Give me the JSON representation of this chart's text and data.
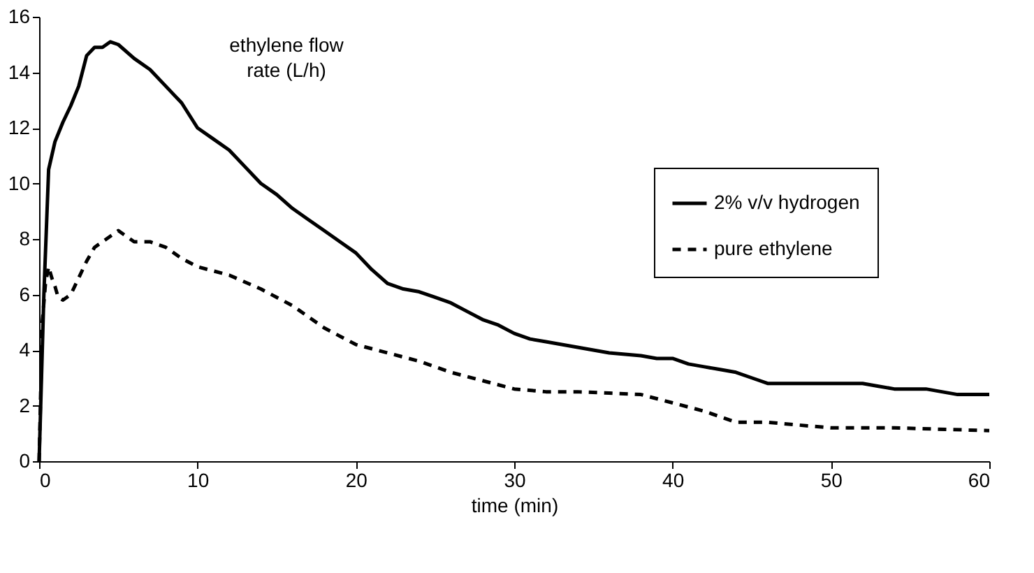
{
  "chart_data": {
    "type": "line",
    "xlabel": "time (min)",
    "ylabel": "ethylene flow rate (L/h)",
    "xlim": [
      0,
      60
    ],
    "xticks": [
      0,
      10,
      20,
      30,
      40,
      50,
      60
    ],
    "ylim": [
      0,
      16
    ],
    "yticks": [
      0,
      2,
      4,
      6,
      8,
      10,
      12,
      14,
      16
    ],
    "grid": false,
    "legend": "top right",
    "marker": "none",
    "series": [
      {
        "name": "2% v/v hydrogen",
        "color": "#000000",
        "line_style": "solid",
        "x": [
          0,
          0.3,
          0.6,
          1,
          1.5,
          2,
          2.5,
          3,
          3.5,
          4,
          4.5,
          5,
          6,
          7,
          8,
          9,
          10,
          11,
          12,
          13,
          14,
          15,
          16,
          17,
          18,
          19,
          20,
          21,
          22,
          23,
          24,
          25,
          26,
          27,
          28,
          29,
          30,
          31,
          32,
          33,
          34,
          35,
          36,
          37,
          38,
          39,
          40,
          41,
          42,
          43,
          44,
          45,
          46,
          47,
          50,
          52,
          53,
          54,
          56,
          57,
          58,
          60
        ],
        "values": [
          0,
          6,
          10.5,
          11.5,
          12.2,
          12.8,
          13.5,
          14.6,
          14.9,
          14.9,
          15.1,
          15,
          14.5,
          14.1,
          13.5,
          12.9,
          12,
          11.6,
          11.2,
          10.6,
          10,
          9.6,
          9.1,
          8.7,
          8.3,
          7.9,
          7.5,
          6.9,
          6.4,
          6.2,
          6.1,
          5.9,
          5.7,
          5.4,
          5.1,
          4.9,
          4.6,
          4.4,
          4.3,
          4.2,
          4.1,
          4.0,
          3.9,
          3.85,
          3.8,
          3.7,
          3.7,
          3.5,
          3.4,
          3.3,
          3.2,
          3.0,
          2.8,
          2.8,
          2.8,
          2.8,
          2.7,
          2.6,
          2.6,
          2.5,
          2.4,
          2.4
        ]
      },
      {
        "name": "pure ethylene",
        "color": "#000000",
        "line_style": "dashed",
        "x": [
          0,
          0.2,
          0.4,
          0.6,
          0.8,
          1.0,
          1.2,
          1.5,
          2,
          2.5,
          3,
          3.5,
          4,
          4.5,
          5,
          6,
          7,
          8,
          9,
          10,
          12,
          14,
          15,
          16,
          18,
          20,
          22,
          24,
          26,
          28,
          30,
          32,
          34,
          36,
          38,
          40,
          42,
          44,
          46,
          48,
          50,
          54,
          60
        ],
        "values": [
          0,
          5,
          6.4,
          7.0,
          6.6,
          6.3,
          5.9,
          5.8,
          6.0,
          6.6,
          7.2,
          7.7,
          7.9,
          8.1,
          8.3,
          7.9,
          7.9,
          7.7,
          7.3,
          7.0,
          6.7,
          6.2,
          5.9,
          5.6,
          4.8,
          4.2,
          3.9,
          3.6,
          3.2,
          2.9,
          2.6,
          2.5,
          2.5,
          2.45,
          2.4,
          2.1,
          1.8,
          1.4,
          1.4,
          1.3,
          1.2,
          1.2,
          1.1
        ]
      }
    ]
  }
}
